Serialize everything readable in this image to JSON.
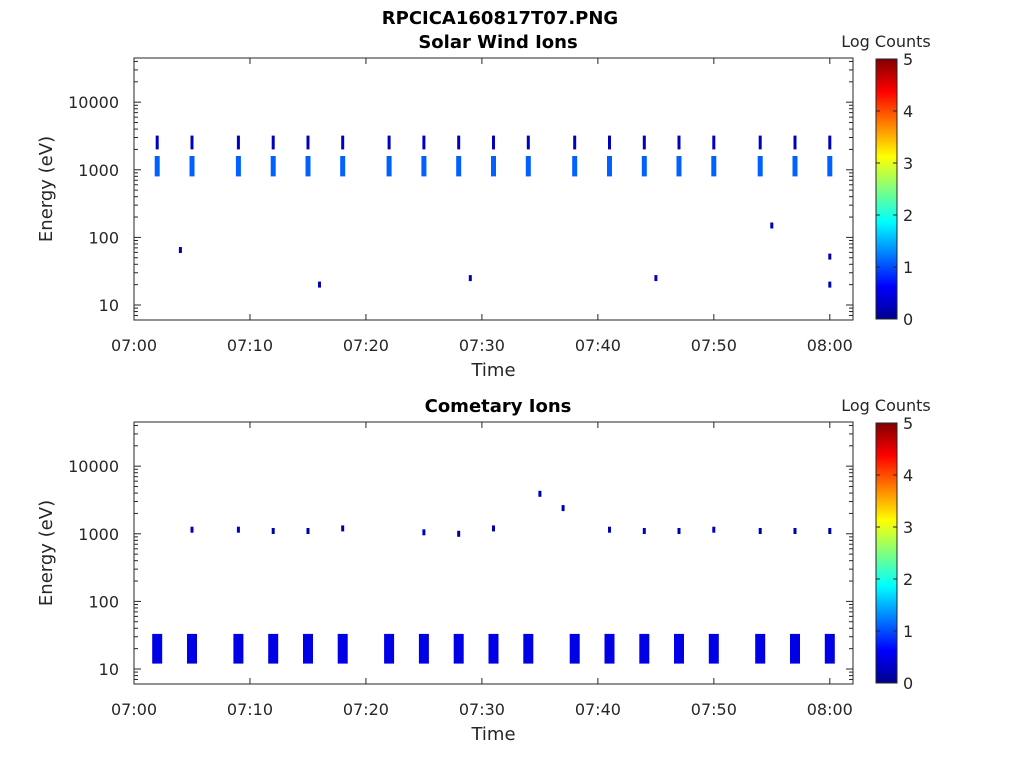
{
  "figure_title": "RPCICA160817T07.PNG",
  "colors": {
    "colormap": "jet",
    "axis": "#262626",
    "background": "#ffffff"
  },
  "chart_data": [
    {
      "type": "heatmap",
      "title": "Solar Wind Ions",
      "xlabel": "Time",
      "ylabel": "Energy (eV)",
      "yscale": "log",
      "xlim": [
        "07:00",
        "08:02"
      ],
      "ylim": [
        6,
        45000
      ],
      "x_ticks": [
        "07:00",
        "07:10",
        "07:20",
        "07:30",
        "07:40",
        "07:50",
        "08:00"
      ],
      "y_ticks": [
        10,
        100,
        1000,
        10000
      ],
      "y_tick_labels": [
        "10",
        "100",
        "1000",
        "10000"
      ],
      "colorbar": {
        "label": "Log Counts",
        "range": [
          0,
          5
        ],
        "ticks": [
          "0",
          "1",
          "2",
          "3",
          "4",
          "5"
        ]
      },
      "sweep_times": [
        "07:02",
        "07:05",
        "07:09",
        "07:12",
        "07:15",
        "07:18",
        "07:22",
        "07:25",
        "07:28",
        "07:31",
        "07:34",
        "07:38",
        "07:41",
        "07:44",
        "07:47",
        "07:50",
        "07:54",
        "07:57",
        "08:00"
      ],
      "bands": [
        {
          "energy_min": 800,
          "energy_max": 1600,
          "log_counts": 1.1
        },
        {
          "energy_min": 2000,
          "energy_max": 3200,
          "log_counts": 0.3
        }
      ],
      "isolated_points": [
        {
          "time": "07:04",
          "energy": 65,
          "log_counts": 0.2
        },
        {
          "time": "07:16",
          "energy": 20,
          "log_counts": 0.3
        },
        {
          "time": "07:29",
          "energy": 25,
          "log_counts": 0.3
        },
        {
          "time": "07:45",
          "energy": 25,
          "log_counts": 0.3
        },
        {
          "time": "07:55",
          "energy": 150,
          "log_counts": 0.3
        },
        {
          "time": "08:00",
          "energy": 20,
          "log_counts": 0.3
        },
        {
          "time": "08:00",
          "energy": 52,
          "log_counts": 0.2
        }
      ]
    },
    {
      "type": "heatmap",
      "title": "Cometary Ions",
      "xlabel": "Time",
      "ylabel": "Energy (eV)",
      "yscale": "log",
      "xlim": [
        "07:00",
        "08:02"
      ],
      "ylim": [
        6,
        45000
      ],
      "x_ticks": [
        "07:00",
        "07:10",
        "07:20",
        "07:30",
        "07:40",
        "07:50",
        "08:00"
      ],
      "y_ticks": [
        10,
        100,
        1000,
        10000
      ],
      "y_tick_labels": [
        "10",
        "100",
        "1000",
        "10000"
      ],
      "colorbar": {
        "label": "Log Counts",
        "range": [
          0,
          5
        ],
        "ticks": [
          "0",
          "1",
          "2",
          "3",
          "4",
          "5"
        ]
      },
      "sweep_times": [
        "07:02",
        "07:05",
        "07:09",
        "07:12",
        "07:15",
        "07:18",
        "07:22",
        "07:25",
        "07:28",
        "07:31",
        "07:34",
        "07:38",
        "07:41",
        "07:44",
        "07:47",
        "07:50",
        "07:54",
        "07:57",
        "08:00"
      ],
      "bands": [
        {
          "energy_min": 12,
          "energy_max": 33,
          "log_counts": 0.5
        }
      ],
      "isolated_points": [
        {
          "time": "07:05",
          "energy": 1150,
          "log_counts": 0.3
        },
        {
          "time": "07:09",
          "energy": 1150,
          "log_counts": 0.3
        },
        {
          "time": "07:12",
          "energy": 1100,
          "log_counts": 0.2
        },
        {
          "time": "07:15",
          "energy": 1100,
          "log_counts": 0.2
        },
        {
          "time": "07:18",
          "energy": 1200,
          "log_counts": 0.2
        },
        {
          "time": "07:25",
          "energy": 1050,
          "log_counts": 0.3
        },
        {
          "time": "07:28",
          "energy": 1000,
          "log_counts": 0.2
        },
        {
          "time": "07:31",
          "energy": 1200,
          "log_counts": 0.2
        },
        {
          "time": "07:35",
          "energy": 3900,
          "log_counts": 0.2
        },
        {
          "time": "07:37",
          "energy": 2400,
          "log_counts": 0.2
        },
        {
          "time": "07:41",
          "energy": 1150,
          "log_counts": 0.3
        },
        {
          "time": "07:44",
          "energy": 1100,
          "log_counts": 0.3
        },
        {
          "time": "07:47",
          "energy": 1100,
          "log_counts": 0.2
        },
        {
          "time": "07:50",
          "energy": 1150,
          "log_counts": 0.3
        },
        {
          "time": "07:54",
          "energy": 1100,
          "log_counts": 0.2
        },
        {
          "time": "07:57",
          "energy": 1100,
          "log_counts": 0.2
        },
        {
          "time": "08:00",
          "energy": 1100,
          "log_counts": 0.2
        }
      ]
    }
  ]
}
